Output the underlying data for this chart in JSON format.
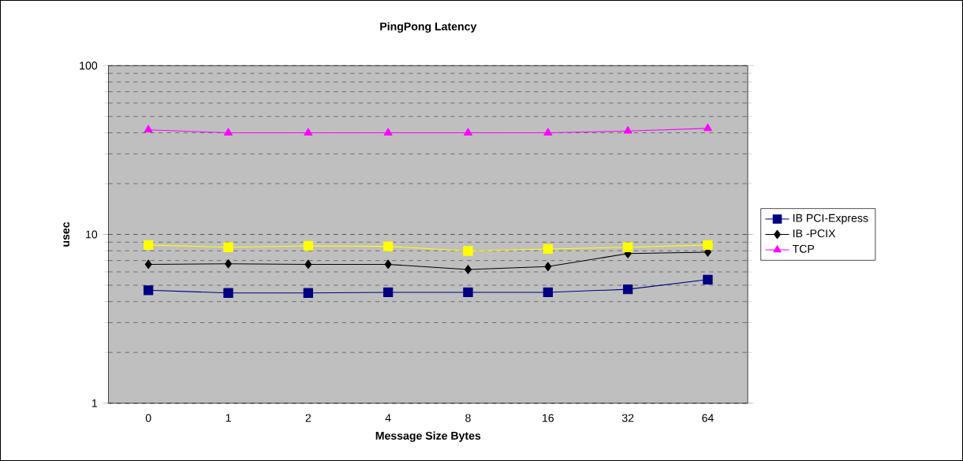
{
  "chart_data": {
    "type": "line",
    "title": "PingPong Latency",
    "xlabel": "Message Size Bytes",
    "ylabel": "usec",
    "categories": [
      "0",
      "1",
      "2",
      "4",
      "8",
      "16",
      "32",
      "64"
    ],
    "series": [
      {
        "name": "IB PCI-Express",
        "color": "#000080",
        "marker": "square",
        "values": [
          4.67,
          4.5,
          4.5,
          4.54,
          4.54,
          4.54,
          4.73,
          5.4
        ]
      },
      {
        "name": "IB -PCIX",
        "color": "#000000",
        "marker": "diamond",
        "values": [
          6.65,
          6.7,
          6.65,
          6.65,
          6.2,
          6.45,
          7.7,
          7.85
        ]
      },
      {
        "color": "#ffff00",
        "marker": "square",
        "values": [
          8.66,
          8.4,
          8.56,
          8.5,
          7.98,
          8.2,
          8.4,
          8.66
        ]
      },
      {
        "name": "TCP",
        "color": "#ff00ff",
        "marker": "triangle",
        "values": [
          41.7,
          40,
          40,
          40,
          40,
          40,
          41,
          42.5
        ]
      }
    ],
    "log": "y",
    "ylim": [
      1,
      100
    ],
    "yticks": [
      1,
      10,
      100
    ],
    "grid": "y",
    "legend": "right",
    "line_style": "solid"
  }
}
